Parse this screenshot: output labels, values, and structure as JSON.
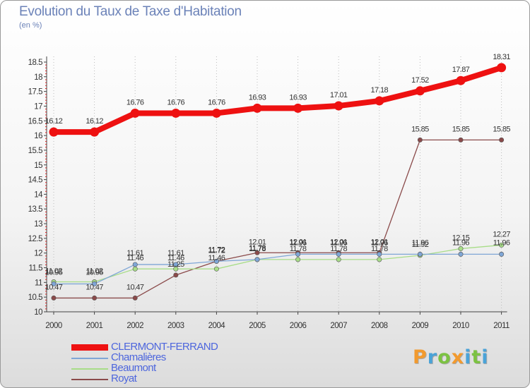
{
  "title": "Evolution du Taux de Taxe d'Habitation",
  "subtitle": "(en %)",
  "logo": {
    "letters": [
      "P",
      "r",
      "o",
      "x",
      "i",
      "t",
      "i"
    ],
    "colors": [
      "#f29a2e",
      "#4aa3d8",
      "#7cc242",
      "#f29a2e",
      "#4aa3d8",
      "#7cc242",
      "#4aa3d8"
    ]
  },
  "chart_data": {
    "type": "line",
    "x": [
      "2000",
      "2001",
      "2002",
      "2003",
      "2004",
      "2005",
      "2006",
      "2007",
      "2008",
      "2009",
      "2010",
      "2011"
    ],
    "ylim": [
      10,
      18.5
    ],
    "yticks": [
      "10",
      "10.5",
      "11",
      "11.5",
      "12",
      "12.5",
      "13",
      "13.5",
      "14",
      "14.5",
      "15",
      "15.5",
      "16",
      "16.5",
      "17",
      "17.5",
      "18",
      "18.5"
    ],
    "grid": "vertical dotted",
    "legend_position": "bottom-left",
    "series": [
      {
        "name": "CLERMONT-FERRAND",
        "color": "#ee1111",
        "values": [
          16.12,
          16.12,
          16.76,
          16.76,
          16.76,
          16.93,
          16.93,
          17.01,
          17.18,
          17.52,
          17.87,
          18.31
        ],
        "labels": [
          "16.12",
          "16.12",
          "16.76",
          "16.76",
          "16.76",
          "16.93",
          "16.93",
          "17.01",
          "17.18",
          "17.52",
          "17.87",
          "18.31"
        ]
      },
      {
        "name": "Chamalières",
        "color": "#7fa6d6",
        "values": [
          10.95,
          10.95,
          11.61,
          11.61,
          11.72,
          11.78,
          11.96,
          11.96,
          11.96,
          11.96,
          11.96,
          11.96
        ],
        "labels": [
          "10.95",
          "10.95",
          "11.61",
          "11.61",
          "11.72",
          "11.78",
          "11.96",
          "11.96",
          "11.96",
          "11.96",
          "11.96",
          "11.96"
        ]
      },
      {
        "name": "Beaumont",
        "color": "#a8dd88",
        "values": [
          11.02,
          11.02,
          11.46,
          11.46,
          11.46,
          11.78,
          11.78,
          11.78,
          11.78,
          11.92,
          12.15,
          12.27
        ],
        "labels": [
          "11.02",
          "11.02",
          "11.46",
          "11.46",
          "11.46",
          "11.78",
          "11.78",
          "11.78",
          "11.78",
          "11.92",
          "12.15",
          "12.27"
        ]
      },
      {
        "name": "Royat",
        "color": "#8a4a4a",
        "values": [
          10.47,
          10.47,
          10.47,
          11.25,
          11.72,
          12.01,
          12.01,
          12.01,
          12.01,
          15.85,
          15.85,
          15.85
        ],
        "labels": [
          "10.47",
          "10.47",
          "10.47",
          "11.25",
          "11.72",
          "12.01",
          "12.01",
          "12.01",
          "12.01",
          "15.85",
          "15.85",
          "15.85"
        ]
      }
    ]
  }
}
